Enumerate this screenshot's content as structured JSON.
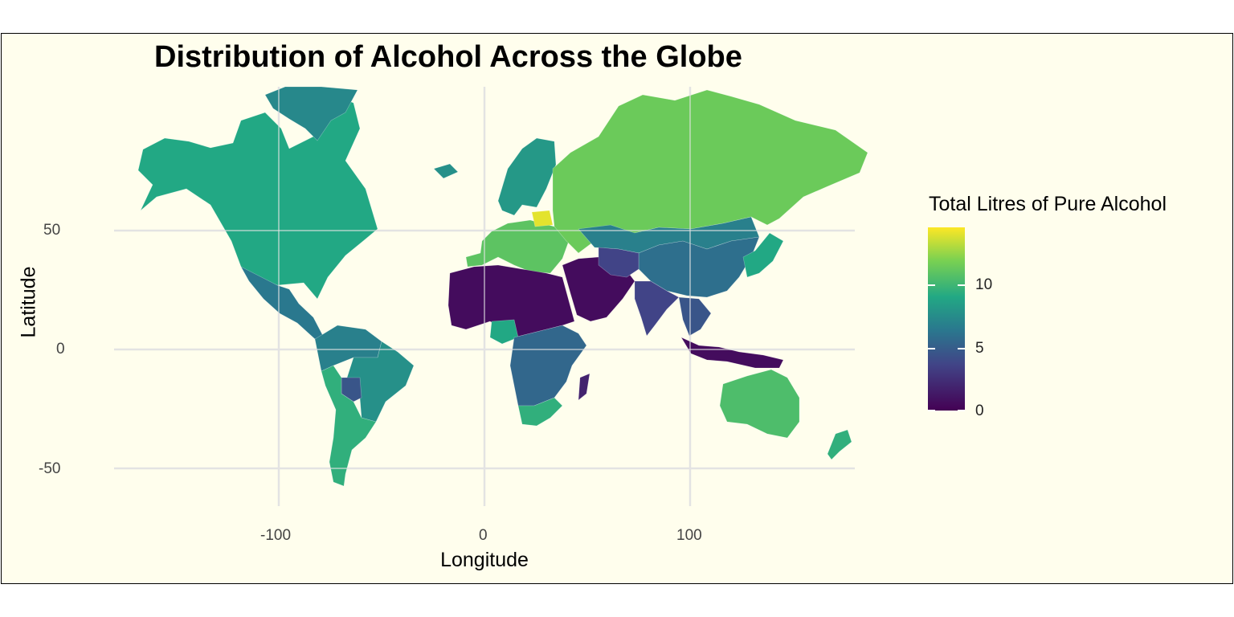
{
  "title": "Distribution of Alcohol Across the Globe",
  "x_axis": {
    "label": "Longitude",
    "ticks": [
      "-100",
      "0",
      "100"
    ]
  },
  "y_axis": {
    "label": "Latitude",
    "ticks": [
      "50",
      "0",
      "-50"
    ]
  },
  "legend": {
    "title": "Total Litres of Pure Alcohol",
    "labels": [
      "10",
      "5",
      "0"
    ],
    "placement": "right"
  },
  "colors": {
    "panel_background": "#fffeed",
    "grid": "#e3e3e3",
    "scale": [
      "#440154",
      "#414487",
      "#2a788e",
      "#22a884",
      "#7ad151",
      "#fde725"
    ]
  },
  "chart_data": {
    "type": "choropleth",
    "projection": "mercator",
    "fill_variable": "Total Litres of Pure Alcohol",
    "scale_range": [
      0,
      15
    ],
    "xlim": [
      -180,
      180
    ],
    "ylim": [
      -60,
      80
    ],
    "grid": true,
    "regions": [
      {
        "region": "Alaska / Canada / USA",
        "value": 9.0
      },
      {
        "region": "Mexico / Central America",
        "value": 6.0
      },
      {
        "region": "South America (north)",
        "value": 6.5
      },
      {
        "region": "Brazil",
        "value": 7.5
      },
      {
        "region": "Bolivia",
        "value": 4.0
      },
      {
        "region": "Argentina / Chile",
        "value": 9.5
      },
      {
        "region": "Greenland",
        "value": 7.0
      },
      {
        "region": "Iceland",
        "value": 7.5
      },
      {
        "region": "Scandinavia",
        "value": 8.0
      },
      {
        "region": "Western Europe",
        "value": 11.0
      },
      {
        "region": "Belarus",
        "value": 14.4
      },
      {
        "region": "Russia",
        "value": 11.5
      },
      {
        "region": "Kazakhstan / Mongolia",
        "value": 6.5
      },
      {
        "region": "China",
        "value": 5.5
      },
      {
        "region": "North Africa",
        "value": 0.5
      },
      {
        "region": "Middle East",
        "value": 0.5
      },
      {
        "region": "Central Asia",
        "value": 3.0
      },
      {
        "region": "India",
        "value": 3.0
      },
      {
        "region": "Southeast Asia",
        "value": 4.0
      },
      {
        "region": "Indonesia",
        "value": 0.5
      },
      {
        "region": "Nigeria",
        "value": 9.0
      },
      {
        "region": "Sub-Saharan Africa",
        "value": 5.0
      },
      {
        "region": "South Africa",
        "value": 9.5
      },
      {
        "region": "Madagascar",
        "value": 1.5
      },
      {
        "region": "Japan / Korea",
        "value": 9.0
      },
      {
        "region": "Australia",
        "value": 10.5
      },
      {
        "region": "New Zealand",
        "value": 9.5
      }
    ]
  }
}
